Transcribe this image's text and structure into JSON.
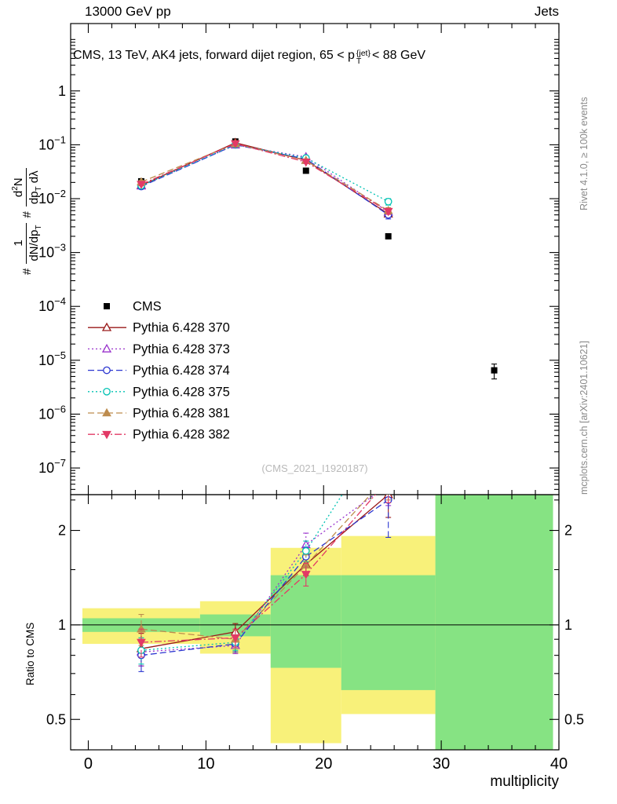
{
  "header": {
    "left_label": "13000 GeV pp",
    "right_label": "Jets"
  },
  "plot_title": {
    "part1": "CMS, 13 TeV, AK4 jets, forward dijet region, 65 < p",
    "p_sup": "{jet}",
    "p_sub": "T",
    "part2": "< 88 GeV"
  },
  "y_axis_label": {
    "hash1": "#",
    "f1_num": "1",
    "f1_den_a": "dN/dp",
    "f1_den_sub": "T",
    "hash2": "#",
    "f2_num_a": "d",
    "f2_num_sup": "2",
    "f2_num_b": "N",
    "f2_den_a": "dp",
    "f2_den_sub": "T",
    "f2_den_b": " dλ"
  },
  "ratio_y_label": "Ratio to CMS",
  "x_axis_label": "multiplicity",
  "side_notes": {
    "rivet": "Rivet 4.1.0, ≥ 100k events",
    "mcplots": "mcplots.cern.ch [arXiv:2401.10621]"
  },
  "watermark": "(CMS_2021_I1920187)",
  "chart_data": {
    "type": "line",
    "title": "CMS, 13 TeV, AK4 jets, forward dijet region, 65 < pT{jet} < 88 GeV",
    "xlabel": "multiplicity",
    "x_range": [
      -1.5,
      40
    ],
    "x_major_ticks": [
      0,
      10,
      20,
      30,
      40
    ],
    "x_minor_tick_step": 2,
    "legend_position": "middle-left",
    "main_panel": {
      "y_scale": "log",
      "y_min": 3.2e-08,
      "y_max": 17.8,
      "y_major_tick_exponents": [
        0,
        -1,
        -2,
        -3,
        -4,
        -5,
        -6,
        -7
      ],
      "series": [
        {
          "name": "CMS",
          "color": "#000000",
          "marker": "square-filled",
          "line": "none",
          "points": [
            [
              4.5,
              0.021,
              0.001
            ],
            [
              12.5,
              0.115,
              0.004
            ],
            [
              18.5,
              0.033,
              0.002
            ],
            [
              25.5,
              0.002,
              0.0002
            ],
            [
              34.5,
              6.5e-06,
              2e-06
            ]
          ]
        },
        {
          "name": "Pythia 6.428 370",
          "color": "#9a1a1a",
          "marker": "triangle-up-open",
          "line": "solid",
          "points": [
            [
              4.5,
              0.0176,
              0.0012
            ],
            [
              12.5,
              0.109,
              0.004
            ],
            [
              18.5,
              0.0515,
              0.003
            ],
            [
              25.5,
              0.0052,
              0.0006
            ]
          ]
        },
        {
          "name": "Pythia 6.428 373",
          "color": "#9932cc",
          "marker": "triangle-up-open",
          "line": "dotted",
          "points": [
            [
              4.5,
              0.0172,
              0.0012
            ],
            [
              12.5,
              0.099,
              0.004
            ],
            [
              18.5,
              0.0594,
              0.004
            ],
            [
              25.5,
              0.0056,
              0.0007
            ]
          ]
        },
        {
          "name": "Pythia 6.428 374",
          "color": "#2a35d0",
          "marker": "circle-open",
          "line": "dashed",
          "points": [
            [
              4.5,
              0.0168,
              0.0012
            ],
            [
              12.5,
              0.1,
              0.004
            ],
            [
              18.5,
              0.0545,
              0.003
            ],
            [
              25.5,
              0.005,
              0.0008
            ]
          ]
        },
        {
          "name": "Pythia 6.428 375",
          "color": "#00c2b3",
          "marker": "circle-open",
          "line": "dotted",
          "points": [
            [
              4.5,
              0.0174,
              0.0012
            ],
            [
              12.5,
              0.101,
              0.004
            ],
            [
              18.5,
              0.0568,
              0.003
            ],
            [
              25.5,
              0.0088,
              0.0012
            ]
          ]
        },
        {
          "name": "Pythia 6.428 381",
          "color": "#bd8c4e",
          "marker": "triangle-up-filled",
          "line": "dashed",
          "points": [
            [
              4.5,
              0.0204,
              0.0014
            ],
            [
              12.5,
              0.104,
              0.004
            ],
            [
              18.5,
              0.0512,
              0.003
            ],
            [
              25.5,
              0.006,
              0.0008
            ]
          ]
        },
        {
          "name": "Pythia 6.428 382",
          "color": "#e23a66",
          "marker": "triangle-down-filled",
          "line": "dash-dot",
          "points": [
            [
              4.5,
              0.0185,
              0.0012
            ],
            [
              12.5,
              0.105,
              0.004
            ],
            [
              18.5,
              0.0479,
              0.003
            ],
            [
              25.5,
              0.0058,
              0.0007
            ]
          ]
        }
      ]
    },
    "ratio_panel": {
      "ylabel": "Ratio to CMS",
      "y_scale": "log",
      "y_min": 0.4,
      "y_max": 2.6,
      "y_major_ticks": [
        0.5,
        1,
        2
      ],
      "y_minor_ticks": [
        0.4,
        0.6,
        0.7,
        0.8,
        0.9,
        1.5,
        2.5
      ],
      "reference_line": 1,
      "band_colors": {
        "outer": "#f8f17a",
        "inner": "#86e383"
      },
      "bands": [
        {
          "x0": -0.5,
          "x1": 9.5,
          "outer": [
            0.87,
            1.13
          ],
          "inner": [
            0.95,
            1.05
          ]
        },
        {
          "x0": 9.5,
          "x1": 15.5,
          "outer": [
            0.81,
            1.19
          ],
          "inner": [
            0.92,
            1.08
          ]
        },
        {
          "x0": 15.5,
          "x1": 21.5,
          "outer": [
            0.42,
            1.76
          ],
          "inner": [
            0.73,
            1.44
          ]
        },
        {
          "x0": 21.5,
          "x1": 29.5,
          "outer": [
            0.52,
            1.92
          ],
          "inner": [
            0.62,
            1.44
          ]
        },
        {
          "x0": 29.5,
          "x1": 39.5,
          "outer": [
            0.36,
            2.62
          ],
          "inner": [
            0.36,
            2.62
          ]
        }
      ],
      "series": [
        {
          "name": "Pythia 6.428 370",
          "points": [
            [
              4.5,
              0.84,
              0.1
            ],
            [
              12.5,
              0.95,
              0.06
            ],
            [
              18.5,
              1.56,
              0.12
            ],
            [
              25.5,
              2.6,
              0.4
            ]
          ]
        },
        {
          "name": "Pythia 6.428 373",
          "points": [
            [
              4.5,
              0.82,
              0.08
            ],
            [
              12.5,
              0.86,
              0.05
            ],
            [
              18.5,
              1.8,
              0.16
            ],
            [
              25.5,
              2.8,
              0.4
            ]
          ]
        },
        {
          "name": "Pythia 6.428 374",
          "points": [
            [
              4.5,
              0.8,
              0.09
            ],
            [
              12.5,
              0.87,
              0.05
            ],
            [
              18.5,
              1.65,
              0.12
            ],
            [
              25.5,
              2.5,
              0.6
            ]
          ]
        },
        {
          "name": "Pythia 6.428 375",
          "points": [
            [
              4.5,
              0.83,
              0.08
            ],
            [
              12.5,
              0.88,
              0.05
            ],
            [
              18.5,
              1.72,
              0.13
            ],
            [
              25.5,
              4.4,
              1.0
            ]
          ]
        },
        {
          "name": "Pythia 6.428 381",
          "points": [
            [
              4.5,
              0.97,
              0.11
            ],
            [
              12.5,
              0.9,
              0.06
            ],
            [
              18.5,
              1.55,
              0.12
            ],
            [
              25.5,
              3.0,
              0.5
            ]
          ]
        },
        {
          "name": "Pythia 6.428 382",
          "points": [
            [
              4.5,
              0.88,
              0.09
            ],
            [
              12.5,
              0.91,
              0.06
            ],
            [
              18.5,
              1.45,
              0.12
            ],
            [
              25.5,
              2.9,
              0.45
            ]
          ]
        }
      ]
    }
  }
}
